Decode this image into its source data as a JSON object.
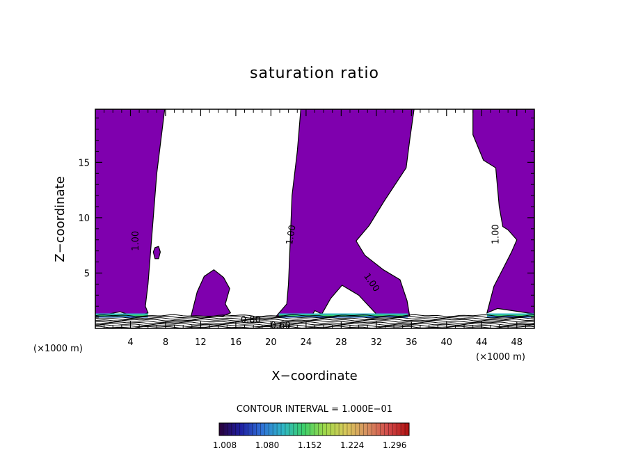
{
  "chart_data": {
    "type": "heatmap",
    "title": "saturation ratio",
    "xlabel": "X−coordinate",
    "ylabel": "Z−coordinate",
    "x_unit_left": "(×1000 m)",
    "x_unit_right": "(×1000 m)",
    "xlim": [
      0,
      50
    ],
    "ylim": [
      0,
      19.8
    ],
    "x_ticks": [
      4,
      8,
      12,
      16,
      20,
      24,
      28,
      32,
      36,
      40,
      44,
      48
    ],
    "y_ticks": [
      5,
      10,
      15
    ],
    "contour_interval_label": "CONTOUR INTERVAL = 1.000E−01",
    "colorbar": {
      "ticks": [
        "1.008",
        "1.080",
        "1.152",
        "1.224",
        "1.296"
      ],
      "range": [
        1.008,
        1.33
      ],
      "colors": [
        "#2a003a",
        "#1e1ea0",
        "#2f6fd6",
        "#2fb6c8",
        "#3ccf6a",
        "#9fd84a",
        "#d8c85a",
        "#d79060",
        "#d24a4a",
        "#b01010"
      ]
    },
    "fill_color": "#7f00ae",
    "contour_labels": [
      {
        "text": "1.00",
        "x": 4.9,
        "y": 7.9,
        "angle": -90
      },
      {
        "text": "1.00",
        "x": 22.6,
        "y": 8.4,
        "angle": -80
      },
      {
        "text": "1.00",
        "x": 45.9,
        "y": 8.5,
        "angle": -90
      },
      {
        "text": "1.00",
        "x": 31.2,
        "y": 4.0,
        "angle": 55
      },
      {
        "text": "0.80",
        "x": 17.7,
        "y": 0.5,
        "angle": 0
      },
      {
        "text": "0.60",
        "x": 21.1,
        "y": 0.0,
        "angle": 0
      }
    ],
    "supersaturated_regions": [
      [
        [
          0,
          19.8
        ],
        [
          7.9,
          19.8
        ],
        [
          7.0,
          14
        ],
        [
          6.5,
          9
        ],
        [
          6.0,
          4
        ],
        [
          5.7,
          2
        ],
        [
          6.0,
          1.4
        ],
        [
          5.2,
          1.2
        ],
        [
          4.0,
          1.2
        ],
        [
          2.8,
          1.5
        ],
        [
          1.5,
          1.3
        ],
        [
          0,
          1.3
        ]
      ],
      [
        [
          10.9,
          1.1
        ],
        [
          11.6,
          3.3
        ],
        [
          12.4,
          4.7
        ],
        [
          13.5,
          5.3
        ],
        [
          14.6,
          4.6
        ],
        [
          15.3,
          3.6
        ],
        [
          14.8,
          2.2
        ],
        [
          15.4,
          1.4
        ],
        [
          14.5,
          1.1
        ]
      ],
      [
        [
          20.6,
          1.1
        ],
        [
          21.8,
          2.2
        ],
        [
          22.0,
          4
        ],
        [
          22.2,
          8
        ],
        [
          22.4,
          12
        ],
        [
          23.0,
          16
        ],
        [
          23.4,
          19.8
        ],
        [
          36.3,
          19.8
        ],
        [
          35.8,
          17
        ],
        [
          35.4,
          14.5
        ],
        [
          32.9,
          11.5
        ],
        [
          31.2,
          9.3
        ],
        [
          29.7,
          7.9
        ],
        [
          30.7,
          6.6
        ],
        [
          32.8,
          5.3
        ],
        [
          34.7,
          4.4
        ],
        [
          35.5,
          2.5
        ],
        [
          35.8,
          1.1
        ],
        [
          34.0,
          1.0
        ],
        [
          32.0,
          1.3
        ],
        [
          30.0,
          3.0
        ],
        [
          28.1,
          3.9
        ],
        [
          26.8,
          2.7
        ],
        [
          25.8,
          1.3
        ],
        [
          25.0,
          1.6
        ],
        [
          24.6,
          1.1
        ]
      ],
      [
        [
          43.0,
          19.8
        ],
        [
          50,
          19.8
        ],
        [
          50,
          1.3
        ],
        [
          47.5,
          1.6
        ],
        [
          45.8,
          1.8
        ],
        [
          44.6,
          1.4
        ],
        [
          45.4,
          3.8
        ],
        [
          46.5,
          5.5
        ],
        [
          47.4,
          6.9
        ],
        [
          48.0,
          8.0
        ],
        [
          47.0,
          8.9
        ],
        [
          46.4,
          9.2
        ],
        [
          46.0,
          11
        ],
        [
          45.6,
          14.5
        ],
        [
          44.2,
          15.2
        ],
        [
          43.0,
          17.5
        ]
      ],
      [
        [
          6.6,
          6.9
        ],
        [
          6.8,
          7.3
        ],
        [
          7.2,
          7.4
        ],
        [
          7.4,
          6.9
        ],
        [
          7.2,
          6.3
        ],
        [
          6.8,
          6.3
        ]
      ]
    ],
    "near_surface_contours": 9
  }
}
